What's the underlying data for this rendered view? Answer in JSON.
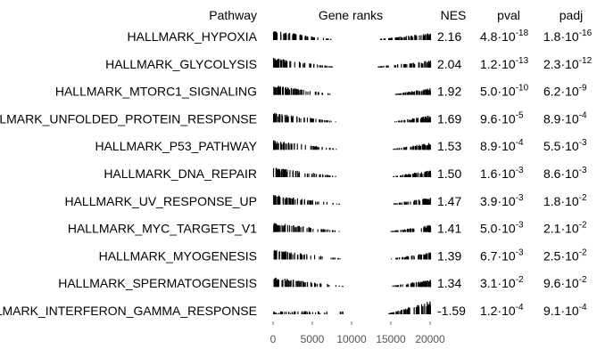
{
  "chart_data": {
    "type": "table",
    "columns": {
      "pathway": "Pathway",
      "gene_ranks": "Gene ranks",
      "nes": "NES",
      "pval": "pval",
      "padj": "padj"
    },
    "x_axis": {
      "range": [
        0,
        20000
      ],
      "ticks": [
        "0",
        "5000",
        "10000",
        "15000",
        "20000"
      ]
    },
    "rows": [
      {
        "pathway": "HALLMARK_HYPOXIA",
        "nes": "2.16",
        "pval_m": "4.8",
        "pval_e": "-18",
        "padj_m": "1.8",
        "padj_e": "-16",
        "direction": "up"
      },
      {
        "pathway": "HALLMARK_GLYCOLYSIS",
        "nes": "2.04",
        "pval_m": "1.2",
        "pval_e": "-13",
        "padj_m": "2.3",
        "padj_e": "-12",
        "direction": "up"
      },
      {
        "pathway": "HALLMARK_MTORC1_SIGNALING",
        "nes": "1.92",
        "pval_m": "5.0",
        "pval_e": "-10",
        "padj_m": "6.2",
        "padj_e": "-9",
        "direction": "up"
      },
      {
        "pathway": "HALLMARK_UNFOLDED_PROTEIN_RESPONSE",
        "nes": "1.69",
        "pval_m": "9.6",
        "pval_e": "-5",
        "padj_m": "8.9",
        "padj_e": "-4",
        "direction": "up"
      },
      {
        "pathway": "HALLMARK_P53_PATHWAY",
        "nes": "1.53",
        "pval_m": "8.9",
        "pval_e": "-4",
        "padj_m": "5.5",
        "padj_e": "-3",
        "direction": "up"
      },
      {
        "pathway": "HALLMARK_DNA_REPAIR",
        "nes": "1.50",
        "pval_m": "1.6",
        "pval_e": "-3",
        "padj_m": "8.6",
        "padj_e": "-3",
        "direction": "up"
      },
      {
        "pathway": "HALLMARK_UV_RESPONSE_UP",
        "nes": "1.47",
        "pval_m": "3.9",
        "pval_e": "-3",
        "padj_m": "1.8",
        "padj_e": "-2",
        "direction": "up"
      },
      {
        "pathway": "HALLMARK_MYC_TARGETS_V1",
        "nes": "1.41",
        "pval_m": "5.0",
        "pval_e": "-3",
        "padj_m": "2.1",
        "padj_e": "-2",
        "direction": "up"
      },
      {
        "pathway": "HALLMARK_MYOGENESIS",
        "nes": "1.39",
        "pval_m": "6.7",
        "pval_e": "-3",
        "padj_m": "2.5",
        "padj_e": "-2",
        "direction": "up"
      },
      {
        "pathway": "HALLMARK_SPERMATOGENESIS",
        "nes": "1.34",
        "pval_m": "3.1",
        "pval_e": "-2",
        "padj_m": "9.6",
        "padj_e": "-2",
        "direction": "up"
      },
      {
        "pathway": "HALLMARK_INTERFERON_GAMMA_RESPONSE",
        "nes": "-1.59",
        "pval_m": "1.2",
        "pval_e": "-4",
        "padj_m": "9.1",
        "padj_e": "-4",
        "direction": "down"
      }
    ]
  }
}
